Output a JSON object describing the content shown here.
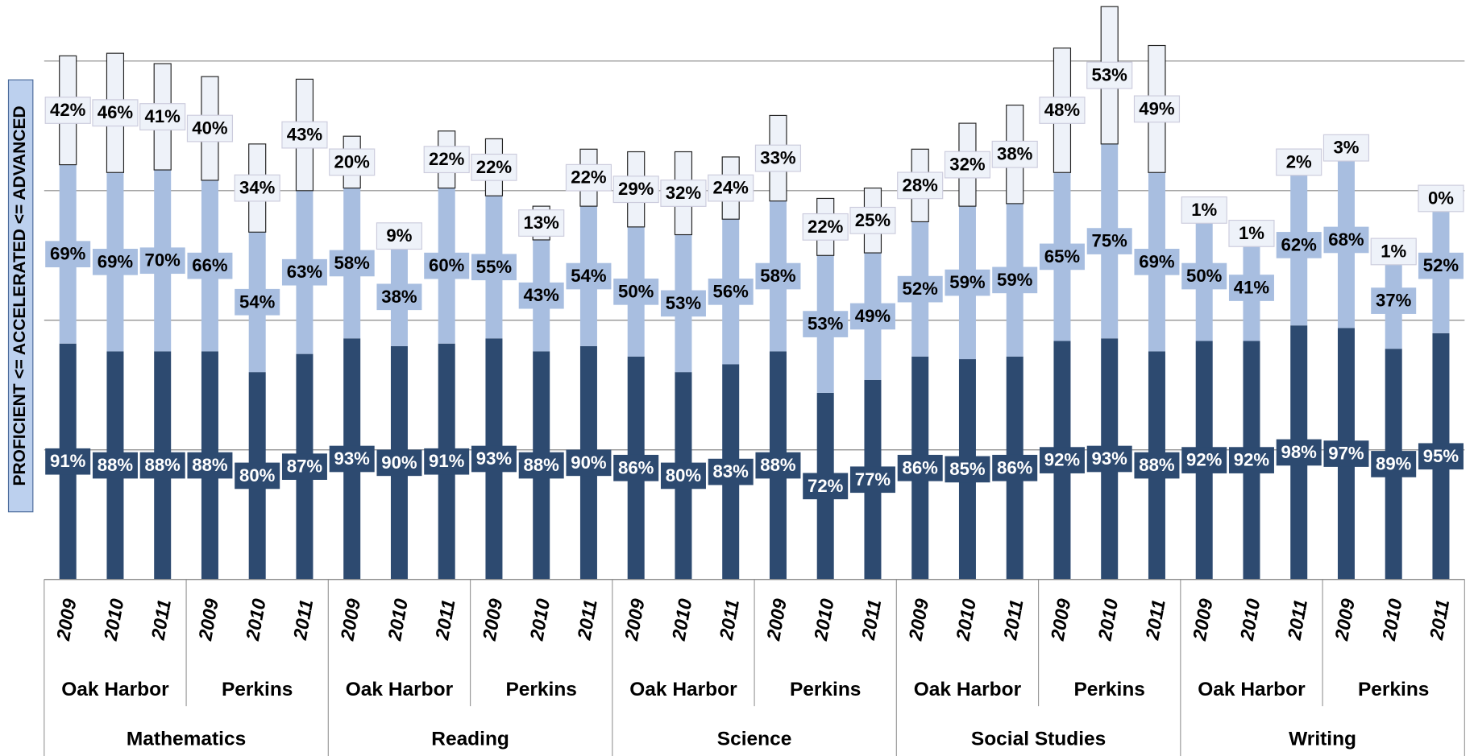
{
  "chart_data": {
    "type": "bar",
    "stacked": true,
    "y_label": "PROFICIENT <= ACCELERATED <= ADVANCED",
    "categories": [
      "2009",
      "2010",
      "2011",
      "2009",
      "2010",
      "2011",
      "2009",
      "2010",
      "2011",
      "2009",
      "2010",
      "2011",
      "2009",
      "2010",
      "2011",
      "2009",
      "2010",
      "2011",
      "2009",
      "2010",
      "2011",
      "2009",
      "2010",
      "2011",
      "2009",
      "2010",
      "2011",
      "2009",
      "2010",
      "2011"
    ],
    "groups": [
      "Oak Harbor",
      "Perkins",
      "Oak Harbor",
      "Perkins",
      "Oak Harbor",
      "Perkins",
      "Oak Harbor",
      "Perkins",
      "Oak Harbor",
      "Perkins"
    ],
    "supergroups": [
      "Mathematics",
      "Reading",
      "Science",
      "Social Studies",
      "Writing"
    ],
    "ylim": [
      0,
      200
    ],
    "yticks": [
      0,
      50,
      100,
      150,
      200
    ],
    "grid": true,
    "series": [
      {
        "color": "#2d4a70",
        "label_color": "#ffffff",
        "values": [
          91,
          88,
          88,
          88,
          80,
          87,
          93,
          90,
          91,
          93,
          88,
          90,
          86,
          80,
          83,
          88,
          72,
          77,
          86,
          85,
          86,
          92,
          93,
          88,
          92,
          92,
          98,
          97,
          89,
          95
        ],
        "value_labels": [
          "91%",
          "88%",
          "88%",
          "88%",
          "80%",
          "87%",
          "93%",
          "90%",
          "91%",
          "93%",
          "88%",
          "90%",
          "86%",
          "80%",
          "83%",
          "88%",
          "72%",
          "77%",
          "86%",
          "85%",
          "86%",
          "92%",
          "93%",
          "88%",
          "92%",
          "92%",
          "98%",
          "97%",
          "89%",
          "95%"
        ]
      },
      {
        "color": "#a8bee0",
        "label_color": "#000000",
        "values": [
          69,
          69,
          70,
          66,
          54,
          63,
          58,
          38,
          60,
          55,
          43,
          54,
          50,
          53,
          56,
          58,
          53,
          49,
          52,
          59,
          59,
          65,
          75,
          69,
          50,
          41,
          62,
          68,
          37,
          52
        ],
        "value_labels": [
          "69%",
          "69%",
          "70%",
          "66%",
          "54%",
          "63%",
          "58%",
          "38%",
          "60%",
          "55%",
          "43%",
          "54%",
          "50%",
          "53%",
          "56%",
          "58%",
          "53%",
          "49%",
          "52%",
          "59%",
          "59%",
          "65%",
          "75%",
          "69%",
          "50%",
          "41%",
          "62%",
          "68%",
          "37%",
          "52%"
        ]
      },
      {
        "color": "#eef2f9",
        "label_color": "#000000",
        "values": [
          42,
          46,
          41,
          40,
          34,
          43,
          20,
          9,
          22,
          22,
          13,
          22,
          29,
          32,
          24,
          33,
          22,
          25,
          28,
          32,
          38,
          48,
          53,
          49,
          1,
          1,
          2,
          3,
          1,
          0
        ],
        "value_labels": [
          "42%",
          "46%",
          "41%",
          "40%",
          "34%",
          "43%",
          "20%",
          "9%",
          "22%",
          "22%",
          "13%",
          "22%",
          "29%",
          "32%",
          "24%",
          "33%",
          "22%",
          "25%",
          "28%",
          "32%",
          "38%",
          "48%",
          "53%",
          "49%",
          "1%",
          "1%",
          "2%",
          "3%",
          "1%",
          "0%"
        ]
      }
    ]
  }
}
